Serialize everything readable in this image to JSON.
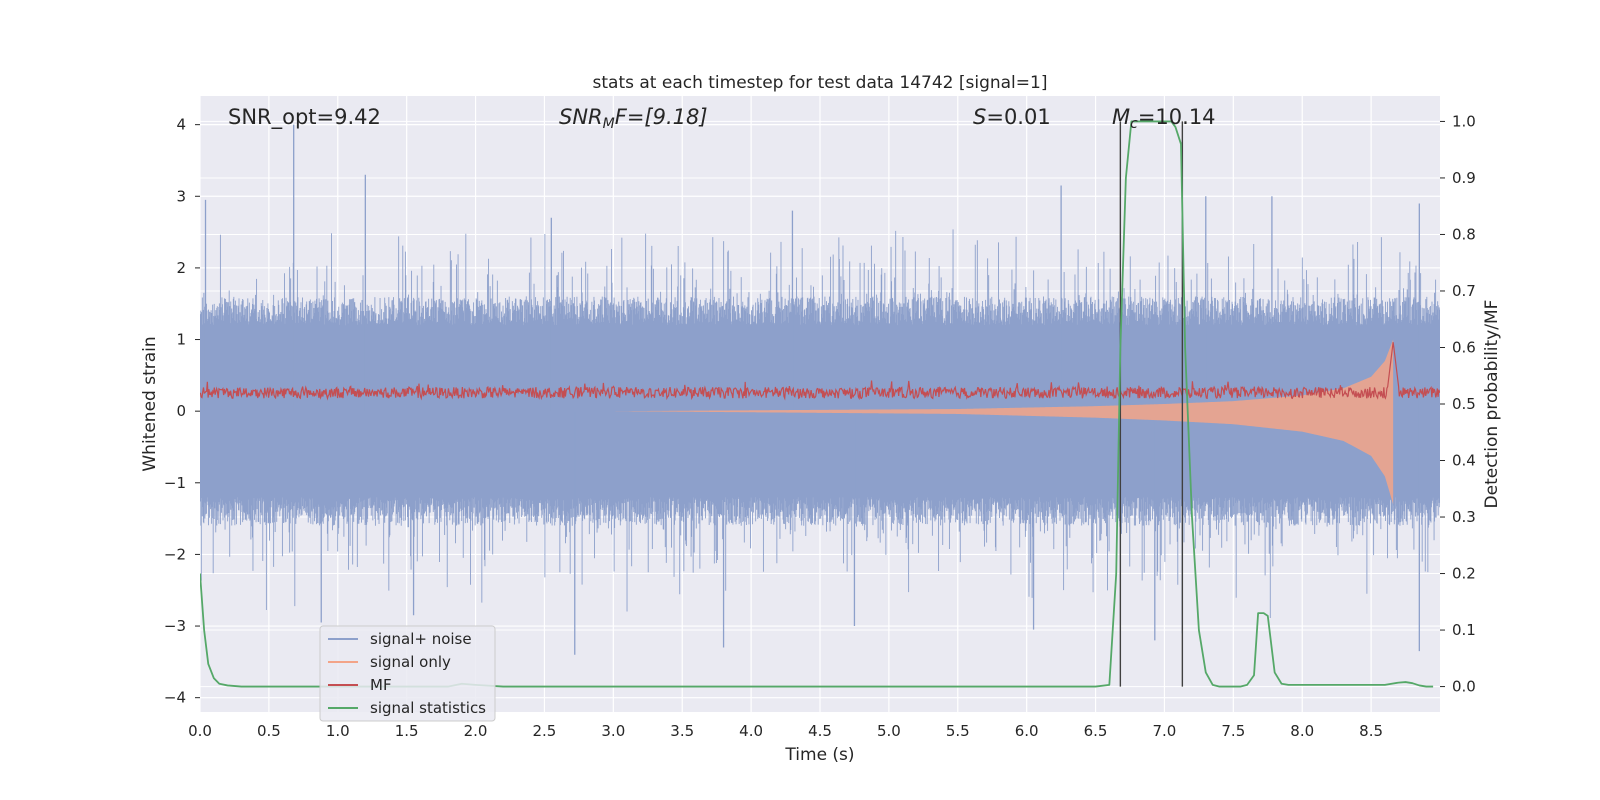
{
  "chart_data": {
    "type": "line",
    "title": "stats at each timestep for test data 14742 [signal=1]",
    "xlabel": "Time (s)",
    "ylabel": "Whitened strain",
    "y2label": "Detection probability/MF",
    "xlim": [
      0.0,
      9.0
    ],
    "ylim": [
      -4.2,
      4.4
    ],
    "y2lim": [
      -0.045,
      1.045
    ],
    "xticks": [
      "0.0",
      "0.5",
      "1.0",
      "1.5",
      "2.0",
      "2.5",
      "3.0",
      "3.5",
      "4.0",
      "4.5",
      "5.0",
      "5.5",
      "6.0",
      "6.5",
      "7.0",
      "7.5",
      "8.0",
      "8.5"
    ],
    "yticks": [
      "−4",
      "−3",
      "−2",
      "−1",
      "0",
      "1",
      "2",
      "3",
      "4"
    ],
    "y2ticks": [
      "0.0",
      "0.1",
      "0.2",
      "0.3",
      "0.4",
      "0.5",
      "0.6",
      "0.7",
      "0.8",
      "0.9",
      "1.0"
    ],
    "grid": true,
    "legend_position": "lower-left",
    "annotations": {
      "snr_opt": "SNR_opt=9.42",
      "snr_mf_base": "SNR",
      "snr_mf_sub": "M",
      "snr_mf_rest": "F=[9.18]",
      "s_var": "S",
      "s_rest": "=0.01",
      "mc_var": "M",
      "mc_sub": "c",
      "mc_rest": "=10.14"
    },
    "series": [
      {
        "name": "signal+ noise",
        "axis": "left",
        "color": "#8da0cb",
        "description": "whitened strain noise, band roughly ±1.6 with peaks to about ±3.4",
        "envelope": [
          1.6,
          -1.6
        ],
        "peaks_high": [
          [
            0.04,
            2.95
          ],
          [
            0.68,
            4.0
          ],
          [
            1.2,
            3.3
          ],
          [
            2.55,
            2.7
          ],
          [
            4.3,
            2.8
          ],
          [
            6.25,
            3.15
          ],
          [
            7.3,
            3.0
          ],
          [
            7.78,
            3.0
          ],
          [
            8.85,
            2.9
          ]
        ],
        "peaks_low": [
          [
            0.88,
            -2.95
          ],
          [
            1.55,
            -2.85
          ],
          [
            2.72,
            -3.4
          ],
          [
            3.8,
            -3.3
          ],
          [
            4.75,
            -3.0
          ],
          [
            6.05,
            -3.05
          ],
          [
            6.93,
            -3.2
          ],
          [
            7.13,
            -3.1
          ],
          [
            8.85,
            -3.35
          ]
        ]
      },
      {
        "name": "signal only",
        "axis": "left",
        "color": "#f3a488",
        "description": "chirp signal with amplitude growing toward merger near 8.66 s",
        "envelope_x": [
          5.5,
          6.0,
          6.5,
          7.0,
          7.5,
          8.0,
          8.3,
          8.5,
          8.6,
          8.66
        ],
        "envelope_y": [
          0.03,
          0.05,
          0.07,
          0.1,
          0.14,
          0.22,
          0.32,
          0.48,
          0.7,
          1.0
        ]
      },
      {
        "name": "MF",
        "axis": "right",
        "color": "#c44e52",
        "description": "matched-filter output, ~0.51–0.54 with peak 0.61 near 8.66 s",
        "baseline": 0.52,
        "peak": [
          8.66,
          0.61
        ]
      },
      {
        "name": "signal statistics",
        "axis": "right",
        "color": "#55a868",
        "x": [
          0.0,
          0.03,
          0.06,
          0.1,
          0.14,
          0.2,
          0.3,
          0.4,
          0.6,
          1.0,
          1.4,
          1.8,
          1.9,
          2.0,
          2.2,
          2.6,
          3.0,
          4.0,
          5.0,
          5.5,
          6.0,
          6.3,
          6.5,
          6.6,
          6.65,
          6.68,
          6.72,
          6.76,
          6.8,
          6.85,
          6.9,
          7.0,
          7.05,
          7.08,
          7.12,
          7.15,
          7.2,
          7.25,
          7.3,
          7.35,
          7.4,
          7.5,
          7.55,
          7.6,
          7.65,
          7.68,
          7.72,
          7.75,
          7.8,
          7.85,
          7.9,
          8.0,
          8.2,
          8.4,
          8.6,
          8.7,
          8.75,
          8.8,
          8.85,
          8.9,
          8.95
        ],
        "y": [
          0.2,
          0.1,
          0.04,
          0.015,
          0.005,
          0.002,
          0.0,
          0.0,
          0.0,
          0.0,
          0.0,
          0.0,
          0.005,
          0.003,
          0.0,
          0.0,
          0.0,
          0.0,
          0.0,
          0.0,
          0.0,
          0.0,
          0.0,
          0.003,
          0.2,
          0.6,
          0.9,
          1.0,
          1.0,
          1.0,
          1.0,
          1.0,
          1.0,
          0.99,
          0.96,
          0.6,
          0.3,
          0.1,
          0.025,
          0.003,
          0.0,
          0.0,
          0.0,
          0.003,
          0.02,
          0.13,
          0.13,
          0.125,
          0.025,
          0.005,
          0.003,
          0.003,
          0.003,
          0.003,
          0.003,
          0.007,
          0.008,
          0.006,
          0.002,
          0.0,
          0.0
        ]
      }
    ],
    "vlines": [
      6.68,
      7.13
    ]
  }
}
